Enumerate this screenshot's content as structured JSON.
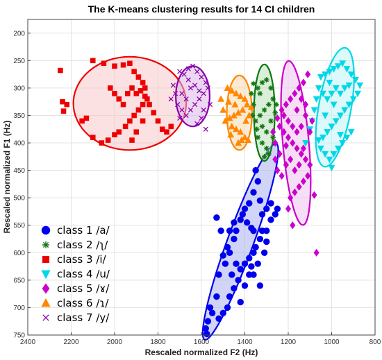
{
  "chart_data": {
    "type": "scatter",
    "title": "The K-means clustering results for 14 CI children",
    "xlabel": "Rescaled normalized F2 (Hz)",
    "ylabel": "Rescaled normalized F1 (Hz)",
    "xlim": [
      2400,
      800
    ],
    "ylim": [
      750,
      175
    ],
    "x_reversed": true,
    "y_reversed": true,
    "xticks": [
      2400,
      2200,
      2000,
      1800,
      1600,
      1400,
      1200,
      1000,
      800
    ],
    "yticks": [
      200,
      250,
      300,
      350,
      400,
      450,
      500,
      550,
      600,
      650,
      700,
      750
    ],
    "grid": true,
    "legend_position": "bottom-left",
    "series": [
      {
        "name": "class 1 /a/",
        "marker": "circle",
        "color": "#0000ee",
        "fill": "#aab0ee",
        "ellipse": {
          "cx": 1420,
          "cy": 580,
          "rx": 60,
          "ry": 190,
          "angle_deg": 20
        },
        "points": [
          [
            1530,
            536
          ],
          [
            1510,
            560
          ],
          [
            1560,
            700
          ],
          [
            1570,
            725
          ],
          [
            1575,
            748
          ],
          [
            1580,
            738
          ],
          [
            1550,
            710
          ],
          [
            1530,
            680
          ],
          [
            1520,
            640
          ],
          [
            1490,
            620
          ],
          [
            1500,
            605
          ],
          [
            1480,
            590
          ],
          [
            1470,
            600
          ],
          [
            1450,
            575
          ],
          [
            1440,
            560
          ],
          [
            1420,
            540
          ],
          [
            1400,
            520
          ],
          [
            1380,
            510
          ],
          [
            1360,
            490
          ],
          [
            1340,
            470
          ],
          [
            1350,
            450
          ],
          [
            1330,
            505
          ],
          [
            1300,
            520
          ],
          [
            1280,
            540
          ],
          [
            1260,
            530
          ],
          [
            1250,
            520
          ],
          [
            1320,
            560
          ],
          [
            1330,
            575
          ],
          [
            1350,
            590
          ],
          [
            1360,
            600
          ],
          [
            1380,
            610
          ],
          [
            1400,
            620
          ],
          [
            1420,
            630
          ],
          [
            1430,
            650
          ],
          [
            1450,
            665
          ],
          [
            1470,
            680
          ],
          [
            1480,
            700
          ],
          [
            1500,
            710
          ],
          [
            1520,
            720
          ],
          [
            1420,
            690
          ],
          [
            1400,
            660
          ],
          [
            1380,
            640
          ],
          [
            1370,
            625
          ],
          [
            1360,
            560
          ],
          [
            1370,
            555
          ],
          [
            1390,
            545
          ],
          [
            1410,
            530
          ],
          [
            1300,
            580
          ],
          [
            1310,
            600
          ],
          [
            1340,
            620
          ],
          [
            1360,
            640
          ],
          [
            1330,
            660
          ],
          [
            1300,
            560
          ],
          [
            1320,
            530
          ],
          [
            1280,
            510
          ],
          [
            1450,
            545
          ],
          [
            1470,
            560
          ],
          [
            1440,
            620
          ],
          [
            1460,
            640
          ]
        ]
      },
      {
        "name": "class 2 /ʅ/",
        "marker": "asterisk",
        "color": "#117711",
        "fill": "#bbe0bb",
        "ellipse": {
          "cx": 1310,
          "cy": 345,
          "rx": 48,
          "ry": 88,
          "angle_deg": 0
        },
        "points": [
          [
            1360,
            292
          ],
          [
            1340,
            300
          ],
          [
            1330,
            310
          ],
          [
            1320,
            290
          ],
          [
            1300,
            285
          ],
          [
            1280,
            300
          ],
          [
            1270,
            320
          ],
          [
            1290,
            330
          ],
          [
            1310,
            340
          ],
          [
            1330,
            350
          ],
          [
            1350,
            360
          ],
          [
            1360,
            330
          ],
          [
            1370,
            310
          ],
          [
            1320,
            370
          ],
          [
            1300,
            380
          ],
          [
            1280,
            360
          ],
          [
            1260,
            345
          ],
          [
            1255,
            330
          ],
          [
            1340,
            390
          ],
          [
            1320,
            400
          ],
          [
            1300,
            410
          ],
          [
            1290,
            420
          ],
          [
            1310,
            425
          ],
          [
            1345,
            375
          ],
          [
            1365,
            350
          ],
          [
            1270,
            390
          ]
        ]
      },
      {
        "name": "class 3 /i/",
        "marker": "square",
        "color": "#ee0000",
        "fill": "#f8c8c8",
        "ellipse": {
          "cx": 1930,
          "cy": 328,
          "rx": 260,
          "ry": 85,
          "angle_deg": 0
        },
        "points": [
          [
            2250,
            268
          ],
          [
            2240,
            325
          ],
          [
            2235,
            342
          ],
          [
            2220,
            330
          ],
          [
            2100,
            250
          ],
          [
            2050,
            255
          ],
          [
            2000,
            260
          ],
          [
            1960,
            258
          ],
          [
            1930,
            255
          ],
          [
            1910,
            270
          ],
          [
            1890,
            280
          ],
          [
            1870,
            290
          ],
          [
            1860,
            300
          ],
          [
            1850,
            320
          ],
          [
            1870,
            330
          ],
          [
            1890,
            340
          ],
          [
            1910,
            350
          ],
          [
            1930,
            360
          ],
          [
            1950,
            370
          ],
          [
            1980,
            380
          ],
          [
            2000,
            385
          ],
          [
            2030,
            395
          ],
          [
            2060,
            400
          ],
          [
            2100,
            390
          ],
          [
            2130,
            355
          ],
          [
            2150,
            360
          ],
          [
            2020,
            300
          ],
          [
            2000,
            310
          ],
          [
            1980,
            320
          ],
          [
            1960,
            330
          ],
          [
            1940,
            310
          ],
          [
            1920,
            300
          ],
          [
            1900,
            310
          ],
          [
            1880,
            305
          ],
          [
            1860,
            315
          ],
          [
            1840,
            330
          ],
          [
            1820,
            345
          ],
          [
            1800,
            360
          ],
          [
            1780,
            375
          ],
          [
            1760,
            380
          ],
          [
            1740,
            370
          ],
          [
            1900,
            380
          ],
          [
            1920,
            395
          ],
          [
            1870,
            360
          ]
        ]
      },
      {
        "name": "class 4 /u/",
        "marker": "triangle-down",
        "color": "#00d8e8",
        "fill": "#c0f4f8",
        "ellipse": {
          "cx": 985,
          "cy": 335,
          "rx": 75,
          "ry": 110,
          "angle_deg": 10
        },
        "points": [
          [
            1050,
            280
          ],
          [
            1030,
            275
          ],
          [
            1010,
            270
          ],
          [
            990,
            265
          ],
          [
            970,
            260
          ],
          [
            950,
            255
          ],
          [
            930,
            265
          ],
          [
            910,
            275
          ],
          [
            890,
            285
          ],
          [
            870,
            295
          ],
          [
            880,
            310
          ],
          [
            900,
            320
          ],
          [
            920,
            330
          ],
          [
            940,
            340
          ],
          [
            960,
            350
          ],
          [
            980,
            360
          ],
          [
            1000,
            370
          ],
          [
            1020,
            380
          ],
          [
            1040,
            390
          ],
          [
            1060,
            395
          ],
          [
            1050,
            410
          ],
          [
            1030,
            420
          ],
          [
            1010,
            430
          ],
          [
            990,
            420
          ],
          [
            970,
            410
          ],
          [
            950,
            400
          ],
          [
            930,
            390
          ],
          [
            910,
            380
          ],
          [
            1080,
            340
          ],
          [
            1070,
            320
          ],
          [
            1060,
            300
          ],
          [
            1040,
            310
          ],
          [
            1020,
            320
          ],
          [
            1000,
            310
          ],
          [
            980,
            300
          ],
          [
            960,
            310
          ],
          [
            940,
            300
          ],
          [
            920,
            295
          ],
          [
            1090,
            360
          ],
          [
            1100,
            375
          ],
          [
            1120,
            400
          ],
          [
            1000,
            445
          ],
          [
            960,
            385
          ],
          [
            1030,
            350
          ],
          [
            1010,
            290
          ],
          [
            990,
            330
          ]
        ]
      },
      {
        "name": "class 5 /ɤ/",
        "marker": "diamond",
        "color": "#cc00cc",
        "fill": "#efc4ef",
        "ellipse": {
          "cx": 1165,
          "cy": 400,
          "rx": 60,
          "ry": 150,
          "angle_deg": -5
        },
        "points": [
          [
            1110,
            275
          ],
          [
            1130,
            290
          ],
          [
            1150,
            300
          ],
          [
            1170,
            310
          ],
          [
            1190,
            320
          ],
          [
            1210,
            330
          ],
          [
            1230,
            340
          ],
          [
            1250,
            355
          ],
          [
            1240,
            370
          ],
          [
            1220,
            380
          ],
          [
            1200,
            390
          ],
          [
            1180,
            400
          ],
          [
            1160,
            410
          ],
          [
            1140,
            420
          ],
          [
            1120,
            430
          ],
          [
            1100,
            440
          ],
          [
            1110,
            460
          ],
          [
            1130,
            470
          ],
          [
            1150,
            480
          ],
          [
            1170,
            490
          ],
          [
            1190,
            500
          ],
          [
            1200,
            520
          ],
          [
            1180,
            550
          ],
          [
            1080,
            495
          ],
          [
            1070,
            600
          ],
          [
            1090,
            360
          ],
          [
            1100,
            380
          ],
          [
            1120,
            350
          ],
          [
            1140,
            370
          ],
          [
            1160,
            380
          ],
          [
            1180,
            370
          ],
          [
            1200,
            360
          ],
          [
            1220,
            350
          ],
          [
            1240,
            420
          ],
          [
            1260,
            430
          ],
          [
            1250,
            450
          ],
          [
            1230,
            460
          ],
          [
            1210,
            440
          ],
          [
            1190,
            430
          ],
          [
            1170,
            450
          ],
          [
            1150,
            440
          ],
          [
            1130,
            410
          ],
          [
            1120,
            330
          ],
          [
            1140,
            320
          ],
          [
            1160,
            340
          ],
          [
            1260,
            400
          ],
          [
            1270,
            380
          ],
          [
            1210,
            405
          ]
        ]
      },
      {
        "name": "class 6 /ɿ/",
        "marker": "triangle-up",
        "color": "#ff8800",
        "fill": "#fbd8b0",
        "ellipse": {
          "cx": 1425,
          "cy": 345,
          "rx": 58,
          "ry": 68,
          "angle_deg": 0
        },
        "points": [
          [
            1480,
            300
          ],
          [
            1460,
            305
          ],
          [
            1440,
            310
          ],
          [
            1420,
            315
          ],
          [
            1400,
            320
          ],
          [
            1390,
            330
          ],
          [
            1410,
            340
          ],
          [
            1430,
            345
          ],
          [
            1450,
            350
          ],
          [
            1470,
            355
          ],
          [
            1490,
            360
          ],
          [
            1460,
            370
          ],
          [
            1440,
            375
          ],
          [
            1420,
            380
          ],
          [
            1400,
            390
          ],
          [
            1430,
            400
          ],
          [
            1380,
            350
          ],
          [
            1370,
            335
          ],
          [
            1395,
            360
          ],
          [
            1445,
            330
          ],
          [
            1475,
            325
          ],
          [
            1500,
            340
          ],
          [
            1510,
            320
          ],
          [
            1415,
            395
          ],
          [
            1465,
            385
          ],
          [
            1385,
            395
          ]
        ]
      },
      {
        "name": "class 7 /y/",
        "marker": "x",
        "color": "#8800aa",
        "fill": "#ddb8e8",
        "ellipse": {
          "cx": 1640,
          "cy": 315,
          "rx": 78,
          "ry": 55,
          "angle_deg": 0
        },
        "points": [
          [
            1700,
            270
          ],
          [
            1680,
            275
          ],
          [
            1660,
            265
          ],
          [
            1640,
            260
          ],
          [
            1620,
            270
          ],
          [
            1600,
            280
          ],
          [
            1580,
            290
          ],
          [
            1570,
            300
          ],
          [
            1590,
            310
          ],
          [
            1610,
            320
          ],
          [
            1630,
            330
          ],
          [
            1650,
            340
          ],
          [
            1670,
            350
          ],
          [
            1690,
            340
          ],
          [
            1710,
            330
          ],
          [
            1720,
            310
          ],
          [
            1730,
            295
          ],
          [
            1650,
            300
          ],
          [
            1630,
            295
          ],
          [
            1610,
            305
          ],
          [
            1690,
            310
          ],
          [
            1670,
            320
          ],
          [
            1590,
            340
          ],
          [
            1600,
            355
          ],
          [
            1620,
            365
          ],
          [
            1580,
            375
          ],
          [
            1560,
            330
          ],
          [
            1700,
            355
          ],
          [
            1740,
            320
          ],
          [
            1660,
            285
          ]
        ]
      }
    ]
  }
}
